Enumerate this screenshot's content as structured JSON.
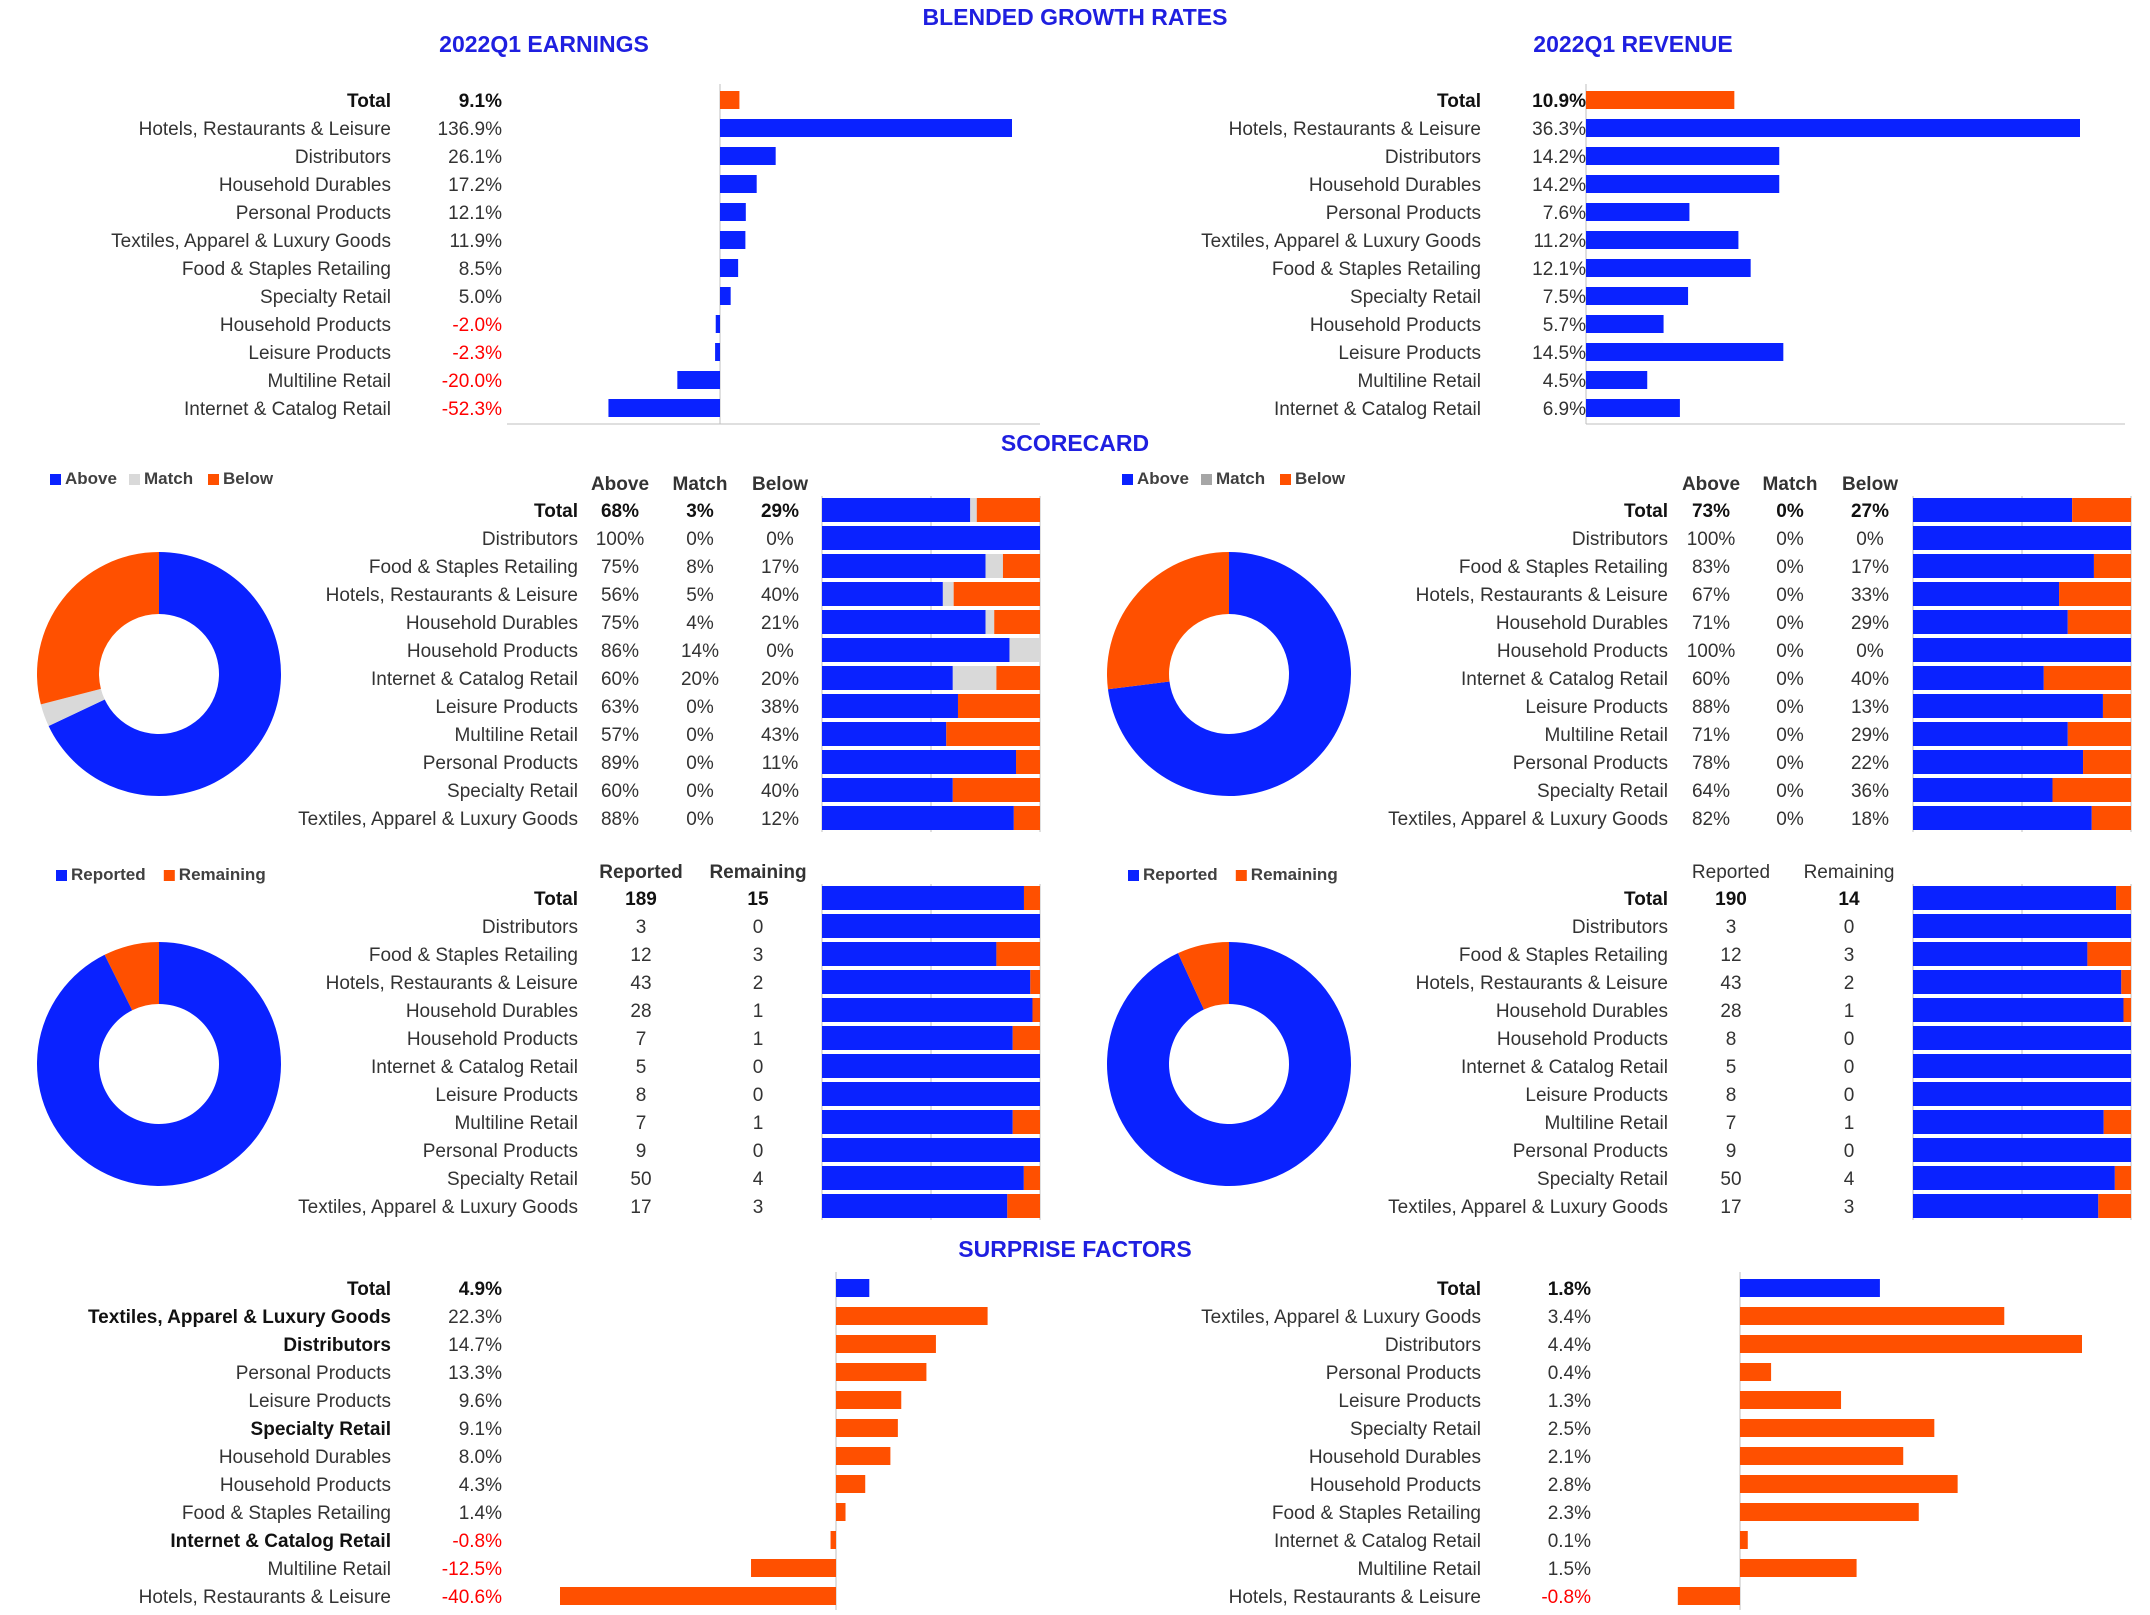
{
  "page_title": "BLENDED GROWTH RATES",
  "colors": {
    "title": "#1f1fe0",
    "blue": "#0a22ff",
    "orange": "#ff5000",
    "match_gray": "#d9d9d9",
    "match_gray_dark": "#a6a6a6",
    "negative_text": "#ff0000",
    "text": "#333333",
    "axis": "#bfbfbf"
  },
  "growth": {
    "earnings": {
      "title": "2022Q1 EARNINGS",
      "chart_data": {
        "type": "bar",
        "orientation": "horizontal",
        "title": "2022Q1 EARNINGS",
        "categories": [
          "Total",
          "Hotels, Restaurants & Leisure",
          "Distributors",
          "Household Durables",
          "Personal Products",
          "Textiles, Apparel & Luxury Goods",
          "Food & Staples Retailing",
          "Specialty Retail",
          "Household Products",
          "Leisure Products",
          "Multiline Retail",
          "Internet & Catalog Retail"
        ],
        "values": [
          9.1,
          136.9,
          26.1,
          17.2,
          12.1,
          11.9,
          8.5,
          5.0,
          -2.0,
          -2.3,
          -20.0,
          -52.3
        ],
        "labels": [
          "9.1%",
          "136.9%",
          "26.1%",
          "17.2%",
          "12.1%",
          "11.9%",
          "8.5%",
          "5.0%",
          "-2.0%",
          "-2.3%",
          "-20.0%",
          "-52.3%"
        ],
        "xlim": [
          -100,
          136.9
        ]
      }
    },
    "revenue": {
      "title": "2022Q1 REVENUE",
      "chart_data": {
        "type": "bar",
        "orientation": "horizontal",
        "title": "2022Q1 REVENUE",
        "categories": [
          "Total",
          "Hotels, Restaurants & Leisure",
          "Distributors",
          "Household Durables",
          "Personal Products",
          "Textiles, Apparel & Luxury Goods",
          "Food & Staples Retailing",
          "Specialty Retail",
          "Household Products",
          "Leisure Products",
          "Multiline Retail",
          "Internet & Catalog Retail"
        ],
        "values": [
          10.9,
          36.3,
          14.2,
          14.2,
          7.6,
          11.2,
          12.1,
          7.5,
          5.7,
          14.5,
          4.5,
          6.9
        ],
        "labels": [
          "10.9%",
          "36.3%",
          "14.2%",
          "14.2%",
          "7.6%",
          "11.2%",
          "12.1%",
          "7.5%",
          "5.7%",
          "14.5%",
          "4.5%",
          "6.9%"
        ],
        "xlim": [
          0,
          40
        ]
      }
    }
  },
  "scorecard": {
    "title": "SCORECARD",
    "legend": [
      "Above",
      "Match",
      "Below"
    ],
    "columns": [
      "Above",
      "Match",
      "Below"
    ],
    "earnings": {
      "rows": [
        {
          "name": "Total",
          "above": "68%",
          "match": "3%",
          "below": "29%"
        },
        {
          "name": "Distributors",
          "above": "100%",
          "match": "0%",
          "below": "0%"
        },
        {
          "name": "Food & Staples Retailing",
          "above": "75%",
          "match": "8%",
          "below": "17%"
        },
        {
          "name": "Hotels, Restaurants & Leisure",
          "above": "56%",
          "match": "5%",
          "below": "40%"
        },
        {
          "name": "Household Durables",
          "above": "75%",
          "match": "4%",
          "below": "21%"
        },
        {
          "name": "Household Products",
          "above": "86%",
          "match": "14%",
          "below": "0%"
        },
        {
          "name": "Internet & Catalog Retail",
          "above": "60%",
          "match": "20%",
          "below": "20%"
        },
        {
          "name": "Leisure Products",
          "above": "63%",
          "match": "0%",
          "below": "38%"
        },
        {
          "name": "Multiline Retail",
          "above": "57%",
          "match": "0%",
          "below": "43%"
        },
        {
          "name": "Personal Products",
          "above": "89%",
          "match": "0%",
          "below": "11%"
        },
        {
          "name": "Specialty Retail",
          "above": "60%",
          "match": "0%",
          "below": "40%"
        },
        {
          "name": "Textiles, Apparel & Luxury Goods",
          "above": "88%",
          "match": "0%",
          "below": "12%"
        }
      ],
      "chart_data": {
        "type": "bar",
        "stacked": true,
        "categories": [
          "Total",
          "Distributors",
          "Food & Staples Retailing",
          "Hotels, Restaurants & Leisure",
          "Household Durables",
          "Household Products",
          "Internet & Catalog Retail",
          "Leisure Products",
          "Multiline Retail",
          "Personal Products",
          "Specialty Retail",
          "Textiles, Apparel & Luxury Goods"
        ],
        "series": [
          {
            "name": "Above",
            "values": [
              68,
              100,
              75,
              56,
              75,
              86,
              60,
              63,
              57,
              89,
              60,
              88
            ]
          },
          {
            "name": "Match",
            "values": [
              3,
              0,
              8,
              5,
              4,
              14,
              20,
              0,
              0,
              0,
              0,
              0
            ]
          },
          {
            "name": "Below",
            "values": [
              29,
              0,
              17,
              40,
              21,
              0,
              20,
              38,
              43,
              11,
              40,
              12
            ]
          }
        ],
        "donut": {
          "type": "pie",
          "categories": [
            "Above",
            "Match",
            "Below"
          ],
          "values": [
            68,
            3,
            29
          ]
        }
      }
    },
    "revenue": {
      "rows": [
        {
          "name": "Total",
          "above": "73%",
          "match": "0%",
          "below": "27%"
        },
        {
          "name": "Distributors",
          "above": "100%",
          "match": "0%",
          "below": "0%"
        },
        {
          "name": "Food & Staples Retailing",
          "above": "83%",
          "match": "0%",
          "below": "17%"
        },
        {
          "name": "Hotels, Restaurants & Leisure",
          "above": "67%",
          "match": "0%",
          "below": "33%"
        },
        {
          "name": "Household Durables",
          "above": "71%",
          "match": "0%",
          "below": "29%"
        },
        {
          "name": "Household Products",
          "above": "100%",
          "match": "0%",
          "below": "0%"
        },
        {
          "name": "Internet & Catalog Retail",
          "above": "60%",
          "match": "0%",
          "below": "40%"
        },
        {
          "name": "Leisure Products",
          "above": "88%",
          "match": "0%",
          "below": "13%"
        },
        {
          "name": "Multiline Retail",
          "above": "71%",
          "match": "0%",
          "below": "29%"
        },
        {
          "name": "Personal Products",
          "above": "78%",
          "match": "0%",
          "below": "22%"
        },
        {
          "name": "Specialty Retail",
          "above": "64%",
          "match": "0%",
          "below": "36%"
        },
        {
          "name": "Textiles, Apparel & Luxury Goods",
          "above": "82%",
          "match": "0%",
          "below": "18%"
        }
      ],
      "chart_data": {
        "type": "bar",
        "stacked": true,
        "categories": [
          "Total",
          "Distributors",
          "Food & Staples Retailing",
          "Hotels, Restaurants & Leisure",
          "Household Durables",
          "Household Products",
          "Internet & Catalog Retail",
          "Leisure Products",
          "Multiline Retail",
          "Personal Products",
          "Specialty Retail",
          "Textiles, Apparel & Luxury Goods"
        ],
        "series": [
          {
            "name": "Above",
            "values": [
              73,
              100,
              83,
              67,
              71,
              100,
              60,
              88,
              71,
              78,
              64,
              82
            ]
          },
          {
            "name": "Match",
            "values": [
              0,
              0,
              0,
              0,
              0,
              0,
              0,
              0,
              0,
              0,
              0,
              0
            ]
          },
          {
            "name": "Below",
            "values": [
              27,
              0,
              17,
              33,
              29,
              0,
              40,
              13,
              29,
              22,
              36,
              18
            ]
          }
        ],
        "donut": {
          "type": "pie",
          "categories": [
            "Above",
            "Match",
            "Below"
          ],
          "values": [
            73,
            0,
            27
          ]
        }
      }
    }
  },
  "reporting": {
    "legend": [
      "Reported",
      "Remaining"
    ],
    "columns": [
      "Reported",
      "Remaining"
    ],
    "earnings": {
      "rows": [
        {
          "name": "Total",
          "reported": "189",
          "remaining": "15"
        },
        {
          "name": "Distributors",
          "reported": "3",
          "remaining": "0"
        },
        {
          "name": "Food & Staples Retailing",
          "reported": "12",
          "remaining": "3"
        },
        {
          "name": "Hotels, Restaurants & Leisure",
          "reported": "43",
          "remaining": "2"
        },
        {
          "name": "Household Durables",
          "reported": "28",
          "remaining": "1"
        },
        {
          "name": "Household Products",
          "reported": "7",
          "remaining": "1"
        },
        {
          "name": "Internet & Catalog Retail",
          "reported": "5",
          "remaining": "0"
        },
        {
          "name": "Leisure Products",
          "reported": "8",
          "remaining": "0"
        },
        {
          "name": "Multiline Retail",
          "reported": "7",
          "remaining": "1"
        },
        {
          "name": "Personal Products",
          "reported": "9",
          "remaining": "0"
        },
        {
          "name": "Specialty Retail",
          "reported": "50",
          "remaining": "4"
        },
        {
          "name": "Textiles, Apparel & Luxury Goods",
          "reported": "17",
          "remaining": "3"
        }
      ],
      "chart_data": {
        "type": "bar",
        "stacked": true,
        "categories": [
          "Total",
          "Distributors",
          "Food & Staples Retailing",
          "Hotels, Restaurants & Leisure",
          "Household Durables",
          "Household Products",
          "Internet & Catalog Retail",
          "Leisure Products",
          "Multiline Retail",
          "Personal Products",
          "Specialty Retail",
          "Textiles, Apparel & Luxury Goods"
        ],
        "series": [
          {
            "name": "Reported",
            "values": [
              189,
              3,
              12,
              43,
              28,
              7,
              5,
              8,
              7,
              9,
              50,
              17
            ]
          },
          {
            "name": "Remaining",
            "values": [
              15,
              0,
              3,
              2,
              1,
              1,
              0,
              0,
              1,
              0,
              4,
              3
            ]
          }
        ],
        "donut": {
          "type": "pie",
          "categories": [
            "Reported",
            "Remaining"
          ],
          "values": [
            189,
            15
          ]
        }
      }
    },
    "revenue": {
      "rows": [
        {
          "name": "Total",
          "reported": "190",
          "remaining": "14"
        },
        {
          "name": "Distributors",
          "reported": "3",
          "remaining": "0"
        },
        {
          "name": "Food & Staples Retailing",
          "reported": "12",
          "remaining": "3"
        },
        {
          "name": "Hotels, Restaurants & Leisure",
          "reported": "43",
          "remaining": "2"
        },
        {
          "name": "Household Durables",
          "reported": "28",
          "remaining": "1"
        },
        {
          "name": "Household Products",
          "reported": "8",
          "remaining": "0"
        },
        {
          "name": "Internet & Catalog Retail",
          "reported": "5",
          "remaining": "0"
        },
        {
          "name": "Leisure Products",
          "reported": "8",
          "remaining": "0"
        },
        {
          "name": "Multiline Retail",
          "reported": "7",
          "remaining": "1"
        },
        {
          "name": "Personal Products",
          "reported": "9",
          "remaining": "0"
        },
        {
          "name": "Specialty Retail",
          "reported": "50",
          "remaining": "4"
        },
        {
          "name": "Textiles, Apparel & Luxury Goods",
          "reported": "17",
          "remaining": "3"
        }
      ],
      "chart_data": {
        "type": "bar",
        "stacked": true,
        "categories": [
          "Total",
          "Distributors",
          "Food & Staples Retailing",
          "Hotels, Restaurants & Leisure",
          "Household Durables",
          "Household Products",
          "Internet & Catalog Retail",
          "Leisure Products",
          "Multiline Retail",
          "Personal Products",
          "Specialty Retail",
          "Textiles, Apparel & Luxury Goods"
        ],
        "series": [
          {
            "name": "Reported",
            "values": [
              190,
              3,
              12,
              43,
              28,
              8,
              5,
              8,
              7,
              9,
              50,
              17
            ]
          },
          {
            "name": "Remaining",
            "values": [
              14,
              0,
              3,
              2,
              1,
              0,
              0,
              0,
              1,
              0,
              4,
              3
            ]
          }
        ],
        "donut": {
          "type": "pie",
          "categories": [
            "Reported",
            "Remaining"
          ],
          "values": [
            190,
            14
          ]
        }
      }
    }
  },
  "surprise": {
    "title": "SURPRISE FACTORS",
    "earnings": {
      "chart_data": {
        "type": "bar",
        "orientation": "horizontal",
        "categories": [
          "Total",
          "Textiles, Apparel & Luxury Goods",
          "Distributors",
          "Personal Products",
          "Leisure Products",
          "Specialty Retail",
          "Household Durables",
          "Household Products",
          "Food & Staples Retailing",
          "Internet & Catalog Retail",
          "Multiline Retail",
          "Hotels, Restaurants & Leisure"
        ],
        "values": [
          4.9,
          22.3,
          14.7,
          13.3,
          9.6,
          9.1,
          8.0,
          4.3,
          1.4,
          -0.8,
          -12.5,
          -40.6
        ],
        "labels": [
          "4.9%",
          "22.3%",
          "14.7%",
          "13.3%",
          "9.6%",
          "9.1%",
          "8.0%",
          "4.3%",
          "1.4%",
          "-0.8%",
          "-12.5%",
          "-40.6%"
        ],
        "bold": [
          true,
          true,
          true,
          false,
          false,
          true,
          false,
          false,
          false,
          true,
          false,
          false
        ],
        "xlim": [
          -40.6,
          30
        ]
      }
    },
    "revenue": {
      "chart_data": {
        "type": "bar",
        "orientation": "horizontal",
        "categories": [
          "Total",
          "Textiles, Apparel & Luxury Goods",
          "Distributors",
          "Personal Products",
          "Leisure Products",
          "Specialty Retail",
          "Household Durables",
          "Household Products",
          "Food & Staples Retailing",
          "Internet & Catalog Retail",
          "Multiline Retail",
          "Hotels, Restaurants & Leisure"
        ],
        "values": [
          1.8,
          3.4,
          4.4,
          0.4,
          1.3,
          2.5,
          2.1,
          2.8,
          2.3,
          0.1,
          1.5,
          -0.8
        ],
        "labels": [
          "1.8%",
          "3.4%",
          "4.4%",
          "0.4%",
          "1.3%",
          "2.5%",
          "2.1%",
          "2.8%",
          "2.3%",
          "0.1%",
          "1.5%",
          "-0.8%"
        ],
        "bold": [
          true,
          false,
          false,
          false,
          false,
          false,
          false,
          false,
          false,
          false,
          false,
          false
        ],
        "xlim": [
          -0.8,
          5
        ]
      }
    }
  }
}
